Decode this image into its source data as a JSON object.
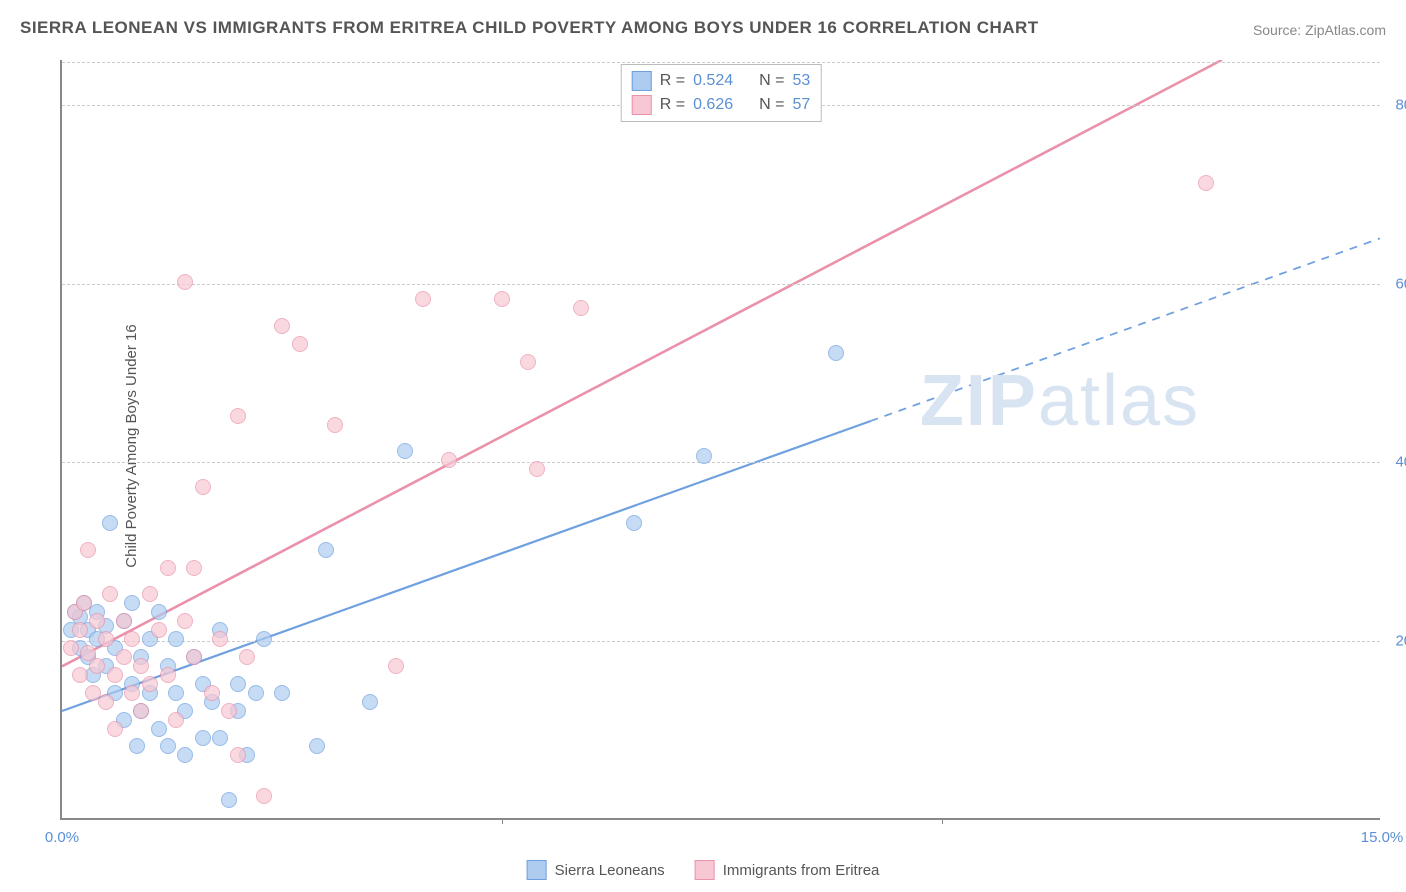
{
  "title": "SIERRA LEONEAN VS IMMIGRANTS FROM ERITREA CHILD POVERTY AMONG BOYS UNDER 16 CORRELATION CHART",
  "source_label": "Source:",
  "source_value": "ZipAtlas.com",
  "ylabel": "Child Poverty Among Boys Under 16",
  "watermark_bold": "ZIP",
  "watermark_rest": "atlas",
  "chart": {
    "type": "scatter",
    "xlim": [
      0,
      15
    ],
    "ylim": [
      0,
      85
    ],
    "xticks": [
      0,
      15
    ],
    "xtick_labels": [
      "0.0%",
      "15.0%"
    ],
    "xtick_marks_at": [
      5,
      10
    ],
    "yticks": [
      20,
      40,
      60,
      80
    ],
    "ytick_labels": [
      "20.0%",
      "40.0%",
      "60.0%",
      "80.0%"
    ],
    "background_color": "#ffffff",
    "grid_color": "#cccccc",
    "axis_color": "#888888",
    "tick_label_color": "#5b8fd6",
    "series": [
      {
        "name": "Sierra Leoneans",
        "color_fill": "#aeccf0",
        "color_stroke": "#6fa0e0",
        "R": "0.524",
        "N": "53",
        "regression": {
          "x1": 0,
          "y1": 12,
          "x2": 15,
          "y2": 65,
          "solid_until_x": 9.2,
          "dashed": true,
          "stroke_width": 2.2
        },
        "points": [
          [
            0.1,
            21
          ],
          [
            0.15,
            23
          ],
          [
            0.2,
            22.5
          ],
          [
            0.2,
            19
          ],
          [
            0.25,
            24
          ],
          [
            0.3,
            18
          ],
          [
            0.3,
            21
          ],
          [
            0.35,
            16
          ],
          [
            0.4,
            20
          ],
          [
            0.4,
            23
          ],
          [
            0.5,
            17
          ],
          [
            0.5,
            21.5
          ],
          [
            0.55,
            33
          ],
          [
            0.6,
            14
          ],
          [
            0.6,
            19
          ],
          [
            0.7,
            22
          ],
          [
            0.7,
            11
          ],
          [
            0.8,
            15
          ],
          [
            0.8,
            24
          ],
          [
            0.85,
            8
          ],
          [
            0.9,
            12
          ],
          [
            0.9,
            18
          ],
          [
            1.0,
            20
          ],
          [
            1.0,
            14
          ],
          [
            1.1,
            10
          ],
          [
            1.1,
            23
          ],
          [
            1.2,
            17
          ],
          [
            1.2,
            8
          ],
          [
            1.3,
            20
          ],
          [
            1.3,
            14
          ],
          [
            1.4,
            12
          ],
          [
            1.4,
            7
          ],
          [
            1.5,
            18
          ],
          [
            1.6,
            9
          ],
          [
            1.6,
            15
          ],
          [
            1.7,
            13
          ],
          [
            1.8,
            21
          ],
          [
            1.8,
            9
          ],
          [
            1.9,
            2
          ],
          [
            2.0,
            12
          ],
          [
            2.0,
            15
          ],
          [
            2.1,
            7
          ],
          [
            2.2,
            14
          ],
          [
            2.3,
            20
          ],
          [
            2.5,
            14
          ],
          [
            2.9,
            8
          ],
          [
            3.0,
            30
          ],
          [
            3.5,
            13
          ],
          [
            3.9,
            41
          ],
          [
            6.5,
            33
          ],
          [
            7.3,
            40.5
          ],
          [
            8.8,
            52
          ]
        ]
      },
      {
        "name": "Immigrants from Eritrea",
        "color_fill": "#f7c8d3",
        "color_stroke": "#ea92aa",
        "R": "0.626",
        "N": "57",
        "regression": {
          "x1": 0,
          "y1": 17,
          "x2": 13.2,
          "y2": 85,
          "solid_until_x": 13.2,
          "dashed": false,
          "stroke_width": 2.6
        },
        "points": [
          [
            0.1,
            19
          ],
          [
            0.15,
            23
          ],
          [
            0.2,
            16
          ],
          [
            0.2,
            21
          ],
          [
            0.25,
            24
          ],
          [
            0.3,
            18.5
          ],
          [
            0.3,
            30
          ],
          [
            0.35,
            14
          ],
          [
            0.4,
            22
          ],
          [
            0.4,
            17
          ],
          [
            0.5,
            20
          ],
          [
            0.5,
            13
          ],
          [
            0.55,
            25
          ],
          [
            0.6,
            16
          ],
          [
            0.6,
            10
          ],
          [
            0.7,
            18
          ],
          [
            0.7,
            22
          ],
          [
            0.8,
            14
          ],
          [
            0.8,
            20
          ],
          [
            0.9,
            12
          ],
          [
            0.9,
            17
          ],
          [
            1.0,
            25
          ],
          [
            1.0,
            15
          ],
          [
            1.1,
            21
          ],
          [
            1.2,
            16
          ],
          [
            1.2,
            28
          ],
          [
            1.3,
            11
          ],
          [
            1.4,
            22
          ],
          [
            1.4,
            60
          ],
          [
            1.5,
            18
          ],
          [
            1.5,
            28
          ],
          [
            1.6,
            37
          ],
          [
            1.7,
            14
          ],
          [
            1.8,
            20
          ],
          [
            1.9,
            12
          ],
          [
            2.0,
            45
          ],
          [
            2.0,
            7
          ],
          [
            2.1,
            18
          ],
          [
            2.3,
            2.5
          ],
          [
            2.5,
            55
          ],
          [
            2.7,
            53
          ],
          [
            3.1,
            44
          ],
          [
            3.8,
            17
          ],
          [
            4.1,
            58
          ],
          [
            4.4,
            40
          ],
          [
            5.0,
            58
          ],
          [
            5.3,
            51
          ],
          [
            5.4,
            39
          ],
          [
            5.9,
            57
          ],
          [
            13.0,
            71
          ]
        ]
      }
    ]
  },
  "stat_legend": {
    "r_label": "R =",
    "n_label": "N ="
  },
  "bottom_legend": {
    "items": [
      "Sierra Leoneans",
      "Immigrants from Eritrea"
    ]
  }
}
